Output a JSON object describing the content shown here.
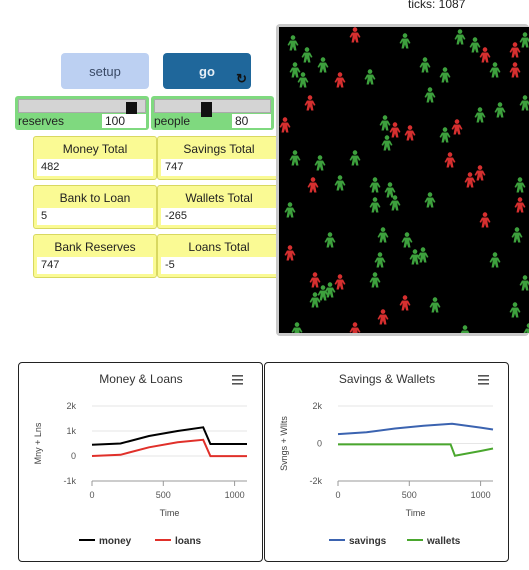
{
  "ticks_label": "ticks: 1087",
  "buttons": {
    "setup": "setup",
    "go": "go",
    "go_icon": "↻"
  },
  "sliders": [
    {
      "label": "reserves",
      "value": "100",
      "fraction": 0.95
    },
    {
      "label": "people",
      "value": "80",
      "fraction": 0.45
    }
  ],
  "monitors": [
    {
      "title": "Money Total",
      "value": "482"
    },
    {
      "title": "Savings Total",
      "value": "747"
    },
    {
      "title": "Bank to Loan",
      "value": "5"
    },
    {
      "title": "Wallets Total",
      "value": "-265"
    },
    {
      "title": "Bank Reserves",
      "value": "747"
    },
    {
      "title": "Loans Total",
      "value": "-5"
    }
  ],
  "colors": {
    "green_agent": "#3da13d",
    "red_agent": "#d62f2f",
    "money": "#000000",
    "loans": "#e0302a",
    "savings": "#3b63b0",
    "wallets": "#4aa72e"
  },
  "chart_data": [
    {
      "type": "line",
      "title": "Money & Loans",
      "xlabel": "Time",
      "ylabel": "Mny + Lns",
      "xlim": [
        0,
        1087
      ],
      "ylim": [
        -1000,
        2000
      ],
      "xticks": [
        "0",
        "500",
        "1000"
      ],
      "yticks": [
        "2k",
        "1k",
        "0",
        "-1k"
      ],
      "legend": "bottom",
      "series": [
        {
          "name": "money",
          "x": [
            0,
            200,
            400,
            600,
            780,
            830,
            1087
          ],
          "values": [
            450,
            500,
            800,
            1000,
            1150,
            482,
            482
          ]
        },
        {
          "name": "loans",
          "x": [
            0,
            200,
            400,
            600,
            780,
            830,
            1087
          ],
          "values": [
            0,
            50,
            350,
            550,
            650,
            -5,
            -5
          ]
        }
      ]
    },
    {
      "type": "line",
      "title": "Savings & Wallets",
      "xlabel": "Time",
      "ylabel": "Svngs + Wllts",
      "xlim": [
        0,
        1087
      ],
      "ylim": [
        -2000,
        2000
      ],
      "xticks": [
        "0",
        "500",
        "1000"
      ],
      "yticks": [
        "2k",
        "0",
        "-2k"
      ],
      "legend": "bottom",
      "series": [
        {
          "name": "savings",
          "x": [
            0,
            200,
            400,
            600,
            800,
            1000,
            1087
          ],
          "values": [
            500,
            600,
            800,
            950,
            1050,
            850,
            747
          ]
        },
        {
          "name": "wallets",
          "x": [
            0,
            200,
            400,
            600,
            790,
            820,
            1000,
            1087
          ],
          "values": [
            -50,
            -50,
            -50,
            -50,
            -50,
            -650,
            -400,
            -265
          ]
        }
      ]
    }
  ]
}
